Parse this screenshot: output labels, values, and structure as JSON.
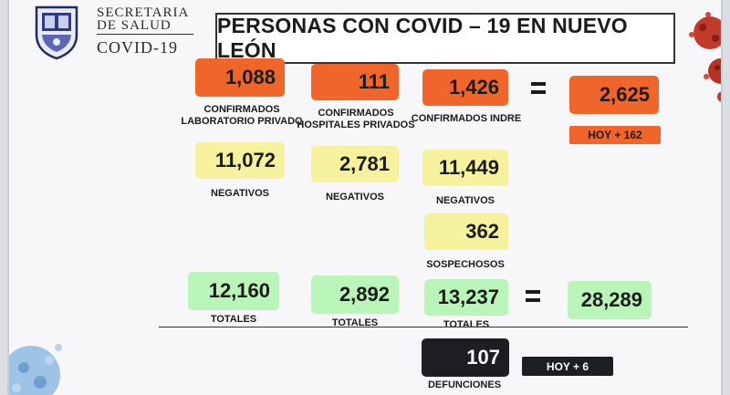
{
  "header": {
    "secretaria_line1": "SECRETARIA",
    "secretaria_line2": "DE SALUD",
    "program": "COVID-19",
    "title": "PERSONAS CON COVID – 19 EN NUEVO LEÓN"
  },
  "confirmed": {
    "private_lab": {
      "value": "1,088",
      "label_line1": "CONFIRMADOS",
      "label_line2": "LABORATORIO PRIVADO"
    },
    "private_hospitals": {
      "value": "111",
      "label_line1": "CONFIRMADOS",
      "label_line2": "HOSPITALES PRIVADOS"
    },
    "indre": {
      "value": "1,426",
      "label": "CONFIRMADOS INDRE"
    },
    "total": {
      "value": "2,625"
    },
    "today_badge": "HOY + 162"
  },
  "negatives": {
    "private_lab": {
      "value": "11,072",
      "label": "NEGATIVOS"
    },
    "private_hospitals": {
      "value": "2,781",
      "label": "NEGATIVOS"
    },
    "indre": {
      "value": "11,449",
      "label": "NEGATIVOS"
    }
  },
  "suspects": {
    "value": "362",
    "label": "SOSPECHOSOS"
  },
  "totals": {
    "private_lab": {
      "value": "12,160",
      "label": "TOTALES"
    },
    "private_hospitals": {
      "value": "2,892",
      "label": "TOTALES"
    },
    "indre": {
      "value": "13,237",
      "label": "TOTALES"
    },
    "grand_total": {
      "value": "28,289"
    }
  },
  "deaths": {
    "value": "107",
    "label": "DEFUNCIONES",
    "today_badge": "HOY + 6"
  },
  "colors": {
    "confirmed": "#f0662a",
    "negative": "#f6f19c",
    "total": "#b9f4b9",
    "deaths": "#1d1d24"
  },
  "icons": [
    "nuevo-leon-coat-of-arms-icon",
    "virus-icon",
    "equals-icon"
  ]
}
